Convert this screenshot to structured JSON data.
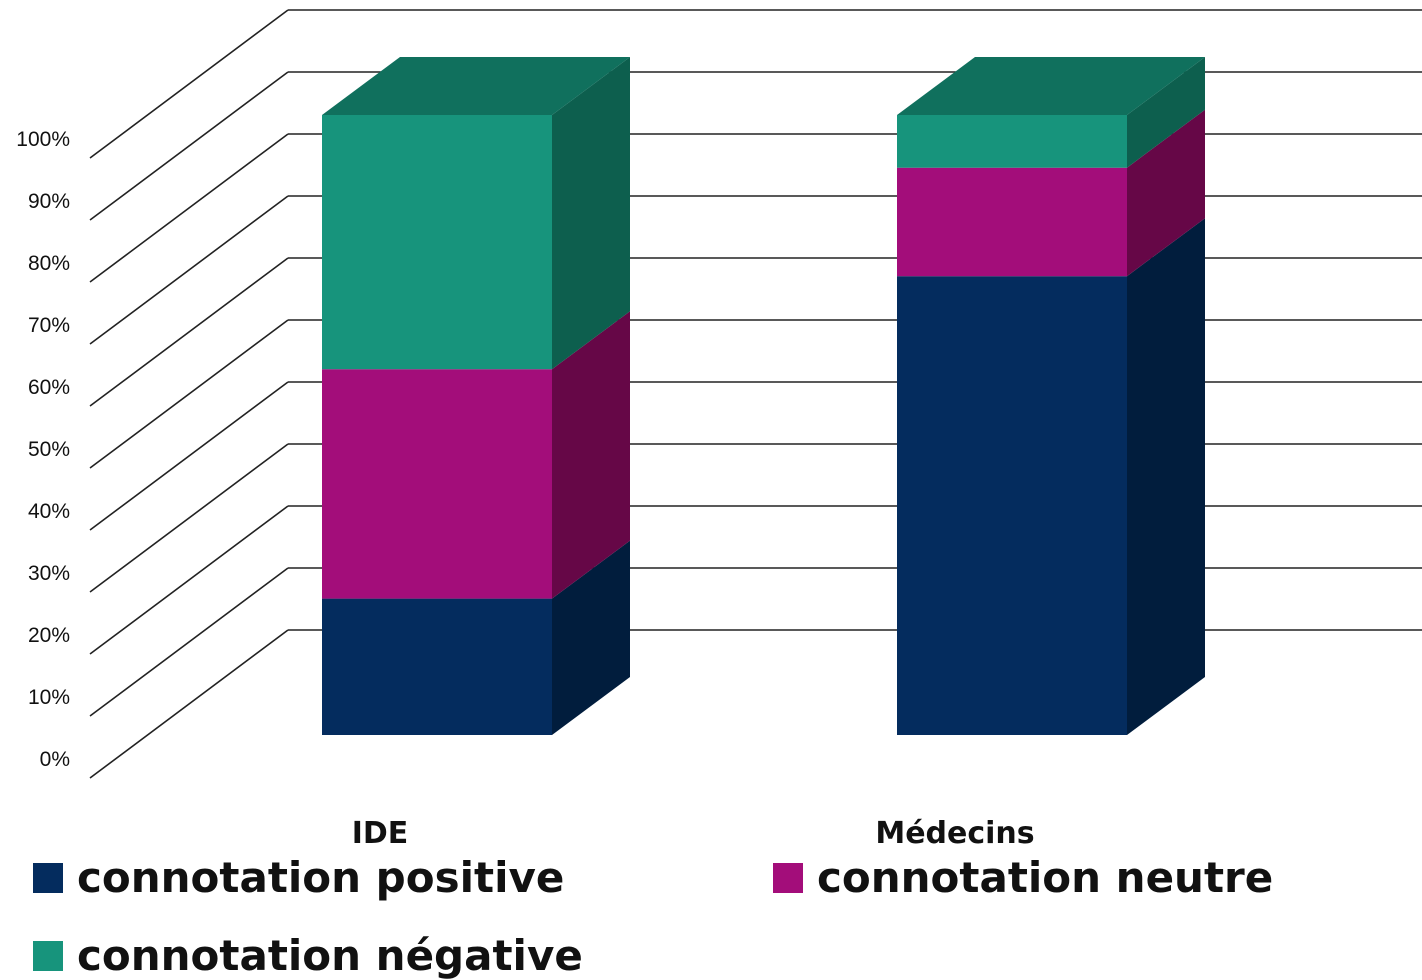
{
  "chart_data": {
    "type": "bar",
    "stacked": true,
    "three_d": true,
    "categories": [
      "IDE",
      "Médecins"
    ],
    "series": [
      {
        "name": "connotation positive",
        "values": [
          22,
          74
        ],
        "color": "#042c5e",
        "side_color": "#011d3d"
      },
      {
        "name": "connotation neutre",
        "values": [
          37,
          17.5
        ],
        "color": "#a30d7a",
        "side_color": "#660747"
      },
      {
        "name": "connotation négative",
        "values": [
          41,
          8.5
        ],
        "color": "#17947c",
        "side_color": "#0d5f4e",
        "top_color": "#10705d"
      }
    ],
    "y_ticks": [
      "0%",
      "10%",
      "20%",
      "30%",
      "40%",
      "50%",
      "60%",
      "70%",
      "80%",
      "90%",
      "100%"
    ],
    "ylim": [
      0,
      100
    ],
    "grid": true,
    "legend_position": "bottom",
    "title": "",
    "xlabel": "",
    "ylabel": ""
  }
}
